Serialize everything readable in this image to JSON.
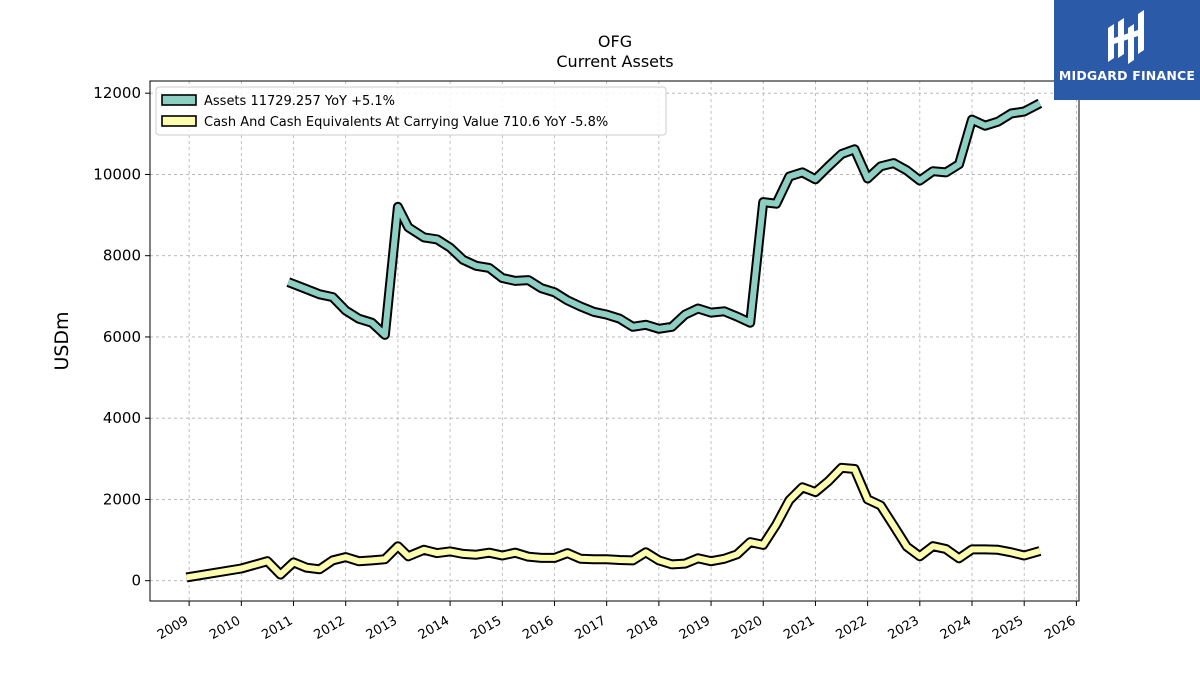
{
  "brand": {
    "name": "MIDGARD FINANCE",
    "bg_color": "#2a5aa8"
  },
  "chart_data": {
    "type": "line",
    "title": "OFG",
    "subtitle": "Current  Assets",
    "ylabel": "USDm",
    "xlabel": "",
    "ylim": [
      -500,
      12300
    ],
    "xlim": [
      2008.25,
      2026.05
    ],
    "yticks": [
      0,
      2000,
      4000,
      6000,
      8000,
      10000,
      12000
    ],
    "xticks": [
      2009,
      2010,
      2011,
      2012,
      2013,
      2014,
      2015,
      2016,
      2017,
      2018,
      2019,
      2020,
      2021,
      2022,
      2023,
      2024,
      2025,
      2026
    ],
    "grid": true,
    "legend_position": "top-left",
    "series": [
      {
        "name": "Assets",
        "legend_label": "Assets  11729.257 YoY +5.1%",
        "color": "#8ecfc4",
        "x": [
          2010.9,
          2011.2,
          2011.5,
          2011.75,
          2012.0,
          2012.25,
          2012.5,
          2012.75,
          2013.0,
          2013.2,
          2013.5,
          2013.75,
          2014.0,
          2014.25,
          2014.5,
          2014.75,
          2015.0,
          2015.25,
          2015.5,
          2015.75,
          2016.0,
          2016.25,
          2016.5,
          2016.75,
          2017.0,
          2017.25,
          2017.5,
          2017.75,
          2018.0,
          2018.25,
          2018.5,
          2018.75,
          2019.0,
          2019.25,
          2019.5,
          2019.75,
          2020.0,
          2020.25,
          2020.5,
          2020.75,
          2021.0,
          2021.25,
          2021.5,
          2021.75,
          2022.0,
          2022.25,
          2022.5,
          2022.75,
          2023.0,
          2023.25,
          2023.5,
          2023.75,
          2024.0,
          2024.25,
          2024.5,
          2024.75,
          2025.0,
          2025.3
        ],
        "values": [
          7350,
          7200,
          7050,
          6980,
          6650,
          6450,
          6350,
          6050,
          9200,
          8700,
          8450,
          8400,
          8200,
          7900,
          7750,
          7700,
          7450,
          7380,
          7400,
          7200,
          7100,
          6900,
          6750,
          6620,
          6550,
          6450,
          6250,
          6300,
          6200,
          6250,
          6550,
          6700,
          6600,
          6630,
          6500,
          6350,
          9320,
          9280,
          9950,
          10050,
          9880,
          10200,
          10500,
          10620,
          9900,
          10200,
          10280,
          10100,
          9850,
          10080,
          10050,
          10250,
          11350,
          11200,
          11300,
          11500,
          11550,
          11750
        ]
      },
      {
        "name": "Cash And Cash Equivalents At Carrying Value",
        "legend_label": "Cash And Cash Equivalents At Carrying Value  710.6 YoY -5.8%",
        "color": "#fdfdb0",
        "x": [
          2008.95,
          2010.0,
          2010.5,
          2010.75,
          2011.0,
          2011.25,
          2011.5,
          2011.75,
          2012.0,
          2012.25,
          2012.5,
          2012.75,
          2013.0,
          2013.2,
          2013.5,
          2013.75,
          2014.0,
          2014.25,
          2014.5,
          2014.75,
          2015.0,
          2015.25,
          2015.5,
          2015.75,
          2016.0,
          2016.25,
          2016.5,
          2016.75,
          2017.0,
          2017.25,
          2017.5,
          2017.75,
          2018.0,
          2018.25,
          2018.5,
          2018.75,
          2019.0,
          2019.25,
          2019.5,
          2019.75,
          2020.0,
          2020.25,
          2020.5,
          2020.75,
          2021.0,
          2021.25,
          2021.5,
          2021.75,
          2022.0,
          2022.25,
          2022.5,
          2022.75,
          2023.0,
          2023.25,
          2023.5,
          2023.75,
          2024.0,
          2024.25,
          2024.5,
          2024.75,
          2025.0,
          2025.3
        ],
        "values": [
          80,
          300,
          480,
          150,
          450,
          320,
          280,
          500,
          580,
          480,
          500,
          530,
          850,
          600,
          760,
          680,
          720,
          660,
          640,
          690,
          620,
          690,
          590,
          560,
          560,
          680,
          540,
          530,
          530,
          510,
          500,
          700,
          500,
          400,
          420,
          550,
          480,
          540,
          650,
          950,
          880,
          1380,
          1980,
          2300,
          2180,
          2450,
          2780,
          2750,
          2000,
          1850,
          1350,
          840,
          600,
          850,
          780,
          550,
          770,
          770,
          760,
          700,
          620,
          730
        ]
      }
    ]
  }
}
